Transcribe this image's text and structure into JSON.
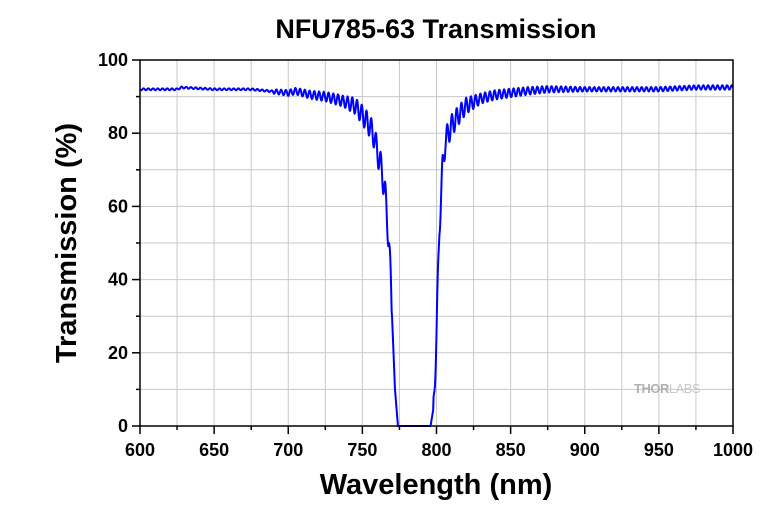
{
  "chart_data": {
    "type": "line",
    "title": "NFU785-63 Transmission",
    "xlabel": "Wavelength (nm)",
    "ylabel": "Transmission (%)",
    "xlim": [
      600,
      1000
    ],
    "ylim": [
      0,
      100
    ],
    "xticks": [
      600,
      650,
      700,
      750,
      800,
      850,
      900,
      950,
      1000
    ],
    "yticks": [
      0,
      20,
      40,
      60,
      80,
      100
    ],
    "grid": true,
    "watermark": {
      "bold": "THOR",
      "light": "LABS"
    },
    "series": [
      {
        "color": "#0000ff",
        "x": [
          600,
          625,
          628,
          650,
          675,
          700,
          705,
          715,
          725,
          735,
          745,
          750,
          755,
          758,
          760,
          762,
          765,
          768,
          770,
          772,
          774,
          780,
          790,
          796,
          798,
          800,
          802,
          804,
          806,
          810,
          815,
          820,
          830,
          840,
          850,
          860,
          875,
          900,
          925,
          950,
          975,
          1000
        ],
        "y": [
          92,
          92,
          92.5,
          92,
          92,
          91,
          91.5,
          90.5,
          90,
          89,
          87.5,
          85,
          82,
          79,
          75,
          72,
          65,
          50,
          30,
          10,
          0,
          0,
          0,
          0,
          5,
          25,
          55,
          70,
          78,
          82,
          85,
          87.5,
          89.5,
          90.5,
          91,
          91.5,
          92,
          92,
          92,
          92,
          92.5,
          92.5
        ]
      }
    ]
  }
}
